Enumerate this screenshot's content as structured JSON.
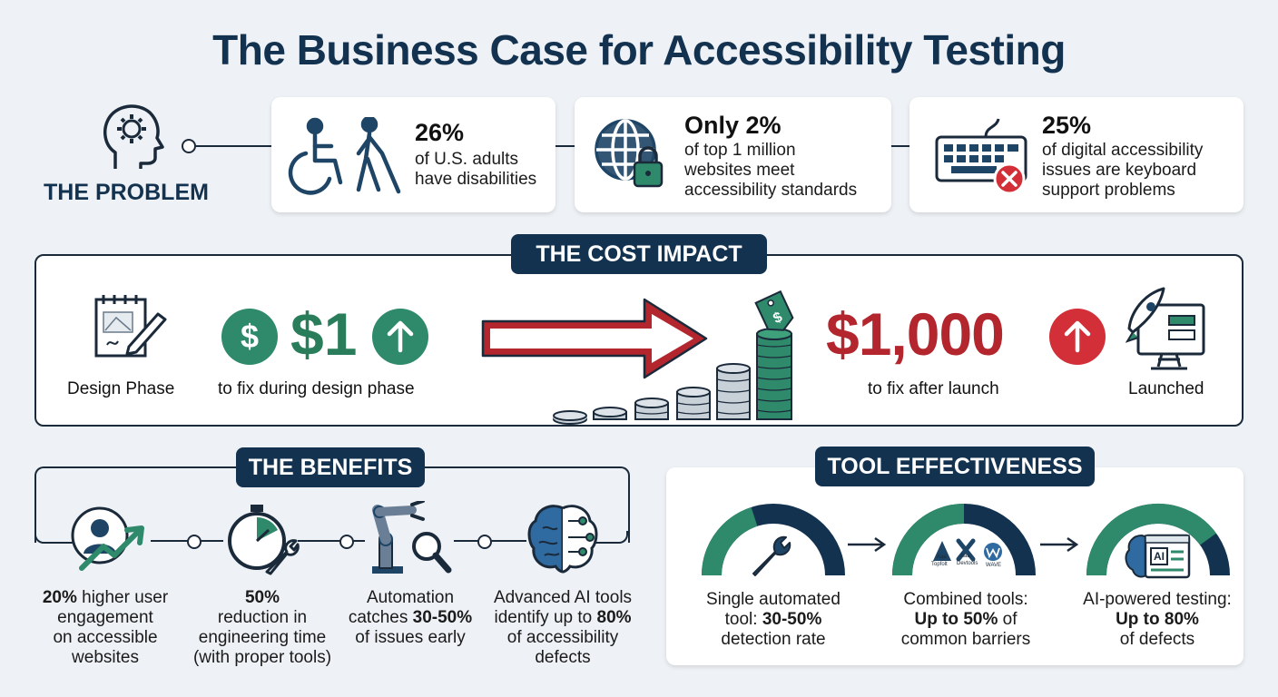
{
  "title": "The Business Case for Accessibility Testing",
  "problem": {
    "label": "THE PROBLEM",
    "stats": [
      {
        "value": "26%",
        "line1": "of U.S. adults",
        "line2": "have disabilities",
        "line3": ""
      },
      {
        "value": "Only 2%",
        "line1": "of top 1 million",
        "line2": "websites meet",
        "line3": "accessibility standards"
      },
      {
        "value": "25%",
        "line1": "of digital accessibility",
        "line2": "issues are keyboard",
        "line3": "support problems"
      }
    ]
  },
  "cost": {
    "label": "THE COST IMPACT",
    "design_phase": "Design Phase",
    "design_amount": "$1",
    "design_desc": "to fix during design phase",
    "launch_amount": "$1,000",
    "launch_desc": "to fix after launch",
    "launched": "Launched"
  },
  "benefits": {
    "label": "THE BENEFITS",
    "items": [
      {
        "strong": "20%",
        "rest": " higher user",
        "line2": "engagement",
        "line3": "on accessible",
        "line4": "websites"
      },
      {
        "strong": "50%",
        "rest": "",
        "line2": "reduction in",
        "line3": "engineering time",
        "line4": "(with proper tools)"
      },
      {
        "pre": "Automation",
        "line2a": "catches ",
        "line2strong": "30-50%",
        "line2b": "",
        "line3": "of issues early"
      },
      {
        "pre": "Advanced AI tools",
        "line2a": "identify up to ",
        "line2strong": "80%",
        "line3": "of accessibility",
        "line4": "defects"
      }
    ]
  },
  "tools": {
    "label": "TOOL EFFECTIVENESS",
    "items": [
      {
        "line1": "Single automated",
        "line2a": "tool: ",
        "line2strong": "30-50%",
        "line3": "detection rate",
        "fill": 0.4
      },
      {
        "line1": "Combined tools:",
        "line2strong": "Up to 50%",
        "line2b": " of",
        "line3": "common barriers",
        "fill": 0.5,
        "mini_labels": [
          "Aaa",
          "Aaa",
          "Topfolt",
          "Devtools",
          "WAVE"
        ]
      },
      {
        "line1": "AI-powered testing:",
        "line2strong": "Up to 80%",
        "line3": "of defects",
        "fill": 0.8,
        "icon_text": "AI"
      }
    ]
  },
  "colors": {
    "navy": "#13324f",
    "green": "#2a7d5b",
    "red": "#b3262d",
    "teal": "#2e8a6a"
  }
}
